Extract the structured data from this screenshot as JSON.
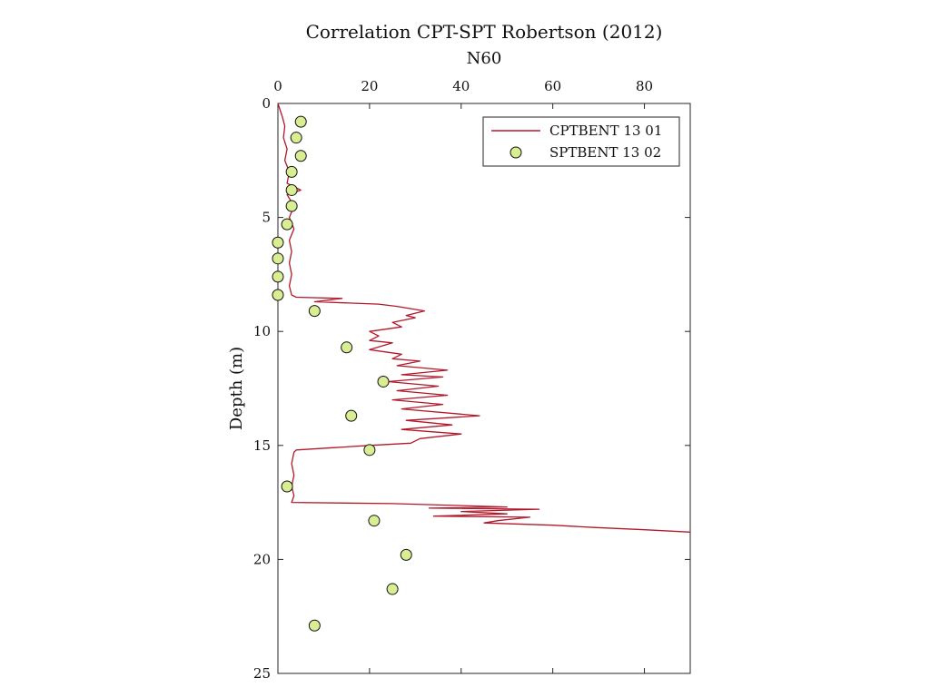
{
  "chart_data": {
    "type": "line",
    "title": "Correlation CPT-SPT Robertson (2012)",
    "xlabel": "N60",
    "ylabel": "Depth (m)",
    "xlim": [
      0,
      90
    ],
    "ylim": [
      0,
      25
    ],
    "y_reversed": true,
    "x_axis_position": "top",
    "xticks": [
      "0",
      "20",
      "40",
      "60",
      "80"
    ],
    "yticks": [
      "0",
      "5",
      "10",
      "15",
      "20",
      "25"
    ],
    "grid": false,
    "legend_location": "top-right",
    "series": [
      {
        "name": "CPTBENT 13 01",
        "kind": "line",
        "color": "#b2182b",
        "points": [
          [
            0.0,
            0.0
          ],
          [
            0.5,
            0.3
          ],
          [
            1.0,
            0.6
          ],
          [
            1.5,
            1.0
          ],
          [
            1.2,
            1.5
          ],
          [
            2.0,
            2.0
          ],
          [
            1.5,
            2.5
          ],
          [
            2.5,
            3.0
          ],
          [
            2.0,
            3.5
          ],
          [
            5.0,
            3.8
          ],
          [
            2.0,
            4.0
          ],
          [
            3.5,
            4.5
          ],
          [
            2.5,
            5.0
          ],
          [
            3.5,
            5.5
          ],
          [
            2.5,
            6.0
          ],
          [
            3.0,
            6.5
          ],
          [
            2.5,
            7.0
          ],
          [
            3.0,
            7.5
          ],
          [
            2.5,
            8.0
          ],
          [
            3.0,
            8.4
          ],
          [
            4.0,
            8.5
          ],
          [
            14.0,
            8.55
          ],
          [
            8.0,
            8.7
          ],
          [
            22.0,
            8.8
          ],
          [
            26.0,
            8.9
          ],
          [
            32.0,
            9.1
          ],
          [
            28.0,
            9.3
          ],
          [
            30.0,
            9.4
          ],
          [
            25.0,
            9.6
          ],
          [
            27.0,
            9.8
          ],
          [
            20.0,
            10.0
          ],
          [
            22.0,
            10.2
          ],
          [
            20.0,
            10.4
          ],
          [
            25.0,
            10.5
          ],
          [
            20.0,
            10.8
          ],
          [
            27.0,
            11.0
          ],
          [
            25.0,
            11.2
          ],
          [
            31.0,
            11.3
          ],
          [
            26.0,
            11.5
          ],
          [
            37.0,
            11.7
          ],
          [
            27.0,
            11.9
          ],
          [
            36.0,
            12.0
          ],
          [
            24.0,
            12.2
          ],
          [
            35.0,
            12.4
          ],
          [
            26.0,
            12.6
          ],
          [
            37.0,
            12.8
          ],
          [
            25.0,
            13.0
          ],
          [
            36.0,
            13.2
          ],
          [
            27.0,
            13.4
          ],
          [
            44.0,
            13.7
          ],
          [
            28.0,
            13.9
          ],
          [
            38.0,
            14.1
          ],
          [
            27.0,
            14.3
          ],
          [
            40.0,
            14.5
          ],
          [
            31.0,
            14.7
          ],
          [
            29.0,
            14.9
          ],
          [
            20.0,
            15.0
          ],
          [
            12.0,
            15.1
          ],
          [
            4.0,
            15.2
          ],
          [
            3.5,
            15.3
          ],
          [
            3.0,
            15.8
          ],
          [
            3.5,
            16.3
          ],
          [
            3.0,
            16.8
          ],
          [
            3.5,
            17.2
          ],
          [
            3.0,
            17.5
          ],
          [
            25.0,
            17.55
          ],
          [
            50.0,
            17.7
          ],
          [
            33.0,
            17.75
          ],
          [
            57.0,
            17.8
          ],
          [
            40.0,
            17.9
          ],
          [
            50.0,
            18.0
          ],
          [
            34.0,
            18.1
          ],
          [
            55.0,
            18.15
          ],
          [
            48.0,
            18.3
          ],
          [
            45.0,
            18.4
          ],
          [
            60.0,
            18.5
          ],
          [
            69.0,
            18.6
          ],
          [
            80.0,
            18.7
          ],
          [
            90.0,
            18.8
          ]
        ]
      },
      {
        "name": "SPTBENT 13 02",
        "kind": "scatter",
        "color": "#d9ed92",
        "points": [
          [
            5,
            0.8
          ],
          [
            4,
            1.5
          ],
          [
            5,
            2.3
          ],
          [
            3,
            3.0
          ],
          [
            3,
            3.8
          ],
          [
            3,
            4.5
          ],
          [
            2,
            5.3
          ],
          [
            0,
            6.1
          ],
          [
            0,
            6.8
          ],
          [
            0,
            7.6
          ],
          [
            0,
            8.4
          ],
          [
            8,
            9.1
          ],
          [
            15,
            10.7
          ],
          [
            23,
            12.2
          ],
          [
            16,
            13.7
          ],
          [
            20,
            15.2
          ],
          [
            2,
            16.8
          ],
          [
            21,
            18.3
          ],
          [
            28,
            19.8
          ],
          [
            25,
            21.3
          ],
          [
            8,
            22.9
          ]
        ]
      }
    ]
  }
}
